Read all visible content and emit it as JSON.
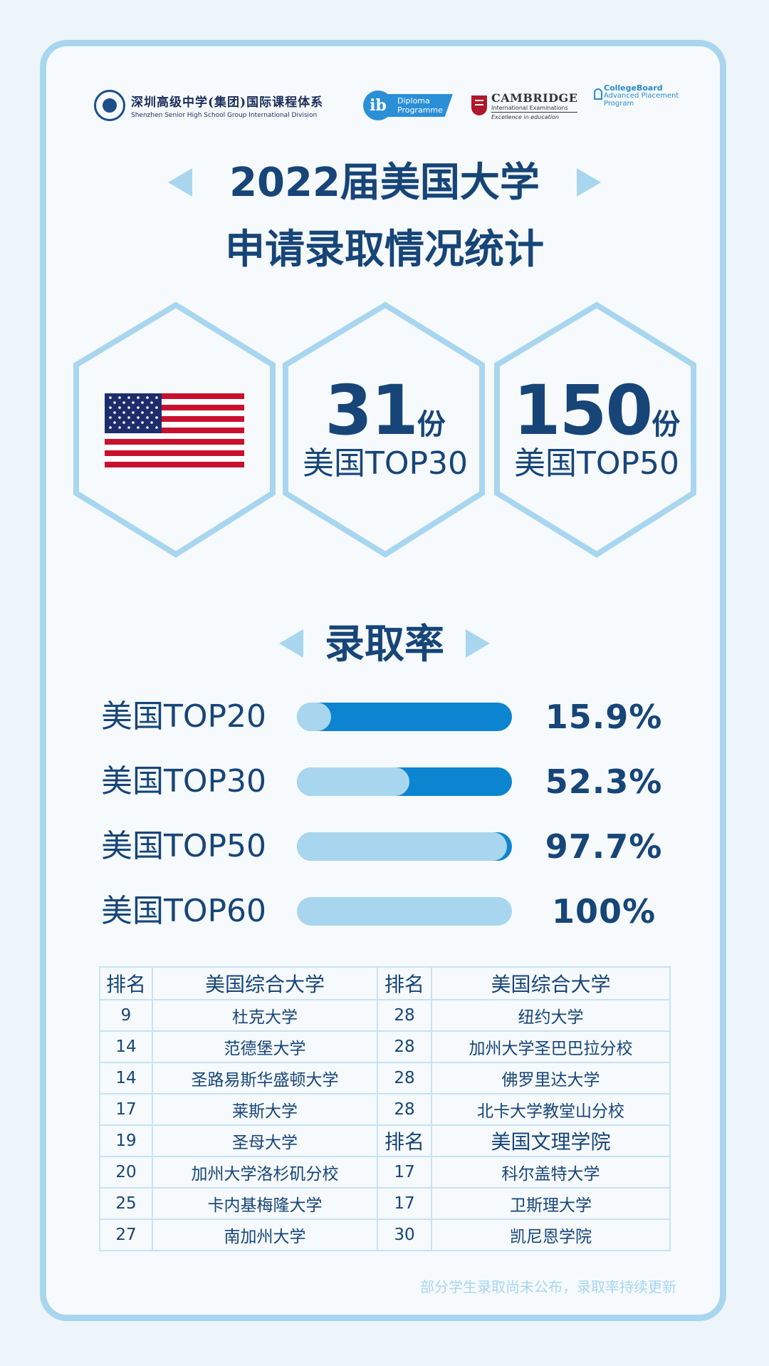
{
  "logos": {
    "shenzhen_cn": "深圳高级中学(集团)国际课程体系",
    "shenzhen_en": "Shenzhen Senior High School Group International Division",
    "ib_mark": "ib",
    "ib_line1": "Diploma",
    "ib_line2": "Programme",
    "cambridge_line1": "CAMBRIDGE",
    "cambridge_line2": "International Examinations",
    "cambridge_line3": "Excellence in education",
    "collegeboard_line1": "CollegeBoard",
    "collegeboard_line2": "Advanced Placement",
    "collegeboard_line3": "Program"
  },
  "title": {
    "line1": "2022届美国大学",
    "line2": "申请录取情况统计"
  },
  "stats": [
    {
      "number": "31",
      "unit": "份",
      "label": "美国TOP30"
    },
    {
      "number": "150",
      "unit": "份",
      "label": "美国TOP50"
    }
  ],
  "flag_icon": "usa-flag-icon",
  "rates": {
    "title": "录取率",
    "items": [
      {
        "label": "美国TOP20",
        "value": "15.9%",
        "fraction": 0.159
      },
      {
        "label": "美国TOP30",
        "value": "52.3%",
        "fraction": 0.523
      },
      {
        "label": "美国TOP50",
        "value": "97.7%",
        "fraction": 0.977
      },
      {
        "label": "美国TOP60",
        "value": "100%",
        "fraction": 1.0
      }
    ]
  },
  "table": {
    "header": [
      "排名",
      "美国综合大学",
      "排名",
      "美国综合大学"
    ],
    "rows": [
      [
        "9",
        "杜克大学",
        "28",
        "纽约大学"
      ],
      [
        "14",
        "范德堡大学",
        "28",
        "加州大学圣巴巴拉分校"
      ],
      [
        "14",
        "圣路易斯华盛顿大学",
        "28",
        "佛罗里达大学"
      ],
      [
        "17",
        "莱斯大学",
        "28",
        "北卡大学教堂山分校"
      ],
      [
        "19",
        "圣母大学",
        "排名",
        "美国文理学院"
      ],
      [
        "20",
        "加州大学洛杉矶分校",
        "17",
        "科尔盖特大学"
      ],
      [
        "25",
        "卡内基梅隆大学",
        "17",
        "卫斯理大学"
      ],
      [
        "27",
        "南加州大学",
        "30",
        "凯尼恩学院"
      ]
    ]
  },
  "footnote": "部分学生录取尚未公布，录取率持续更新",
  "colors": {
    "navy": "#174578",
    "light_blue": "#a9d6ef",
    "bar_blue": "#0c84d0"
  }
}
